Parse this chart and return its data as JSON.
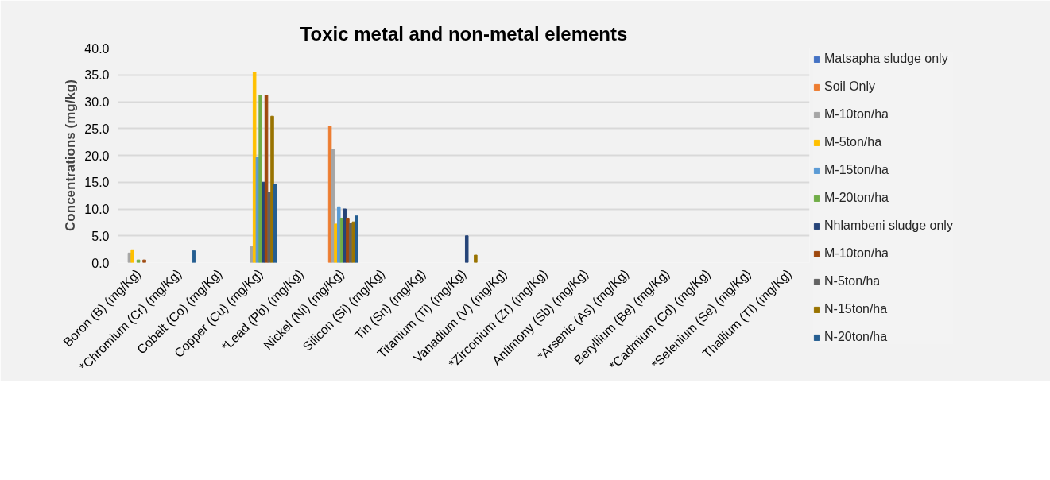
{
  "chart_data": {
    "type": "bar",
    "title": "Toxic metal and non-metal elements",
    "ylabel": "Concentrations (mg/kg)",
    "categories": [
      "Boron (B) (mg/Kg)",
      "*Chromium (Cr) (mg/Kg)",
      "Cobalt (Co) (mg/Kg)",
      "Copper (Cu) (mg/Kg)",
      "*Lead (Pb) (mg/Kg)",
      "Nickel (Ni) (mg/Kg)",
      "Silicon (Si) (mg/Kg)",
      "Tin (Sn) (mg/Kg)",
      "Titanium (Ti) (mg/Kg)",
      "Vanadium (V) (mg/Kg)",
      "*Zirconium (Zr) (mg/Kg)",
      "Antimony (Sb) (mg/Kg)",
      "*Arsenic (As) (mg/Kg)",
      "Beryllium (Be) (mg/Kg)",
      "*Cadmium (Cd) (mg/Kg)",
      "*Selenium (Se) (mg/Kg)",
      "Thallium (Tl) (mg/Kg)"
    ],
    "series": [
      {
        "name": "Matsapha sludge only",
        "color": "#4472c4",
        "values": [
          null,
          null,
          null,
          null,
          null,
          null,
          null,
          null,
          null,
          null,
          null,
          null,
          null,
          null,
          null,
          null,
          null
        ]
      },
      {
        "name": "Soil Only",
        "color": "#ed7d31",
        "values": [
          null,
          null,
          null,
          null,
          null,
          25.4,
          null,
          null,
          null,
          null,
          null,
          null,
          null,
          null,
          null,
          null,
          null
        ]
      },
      {
        "name": "M-10ton/ha",
        "color": "#a5a5a5",
        "values": [
          1.8,
          null,
          null,
          3.0,
          null,
          21.1,
          null,
          null,
          null,
          null,
          null,
          null,
          null,
          null,
          null,
          null,
          null
        ]
      },
      {
        "name": "M-5ton/ha",
        "color": "#ffc000",
        "values": [
          2.4,
          null,
          null,
          35.5,
          null,
          7.2,
          null,
          null,
          null,
          null,
          null,
          null,
          null,
          null,
          null,
          null,
          null
        ]
      },
      {
        "name": "M-15ton/ha",
        "color": "#5b9bd5",
        "values": [
          null,
          null,
          null,
          19.7,
          null,
          10.4,
          null,
          null,
          null,
          null,
          null,
          null,
          null,
          null,
          null,
          null,
          null
        ]
      },
      {
        "name": "M-20ton/ha",
        "color": "#70ad47",
        "values": [
          0.5,
          null,
          null,
          31.2,
          null,
          8.3,
          null,
          null,
          null,
          null,
          null,
          null,
          null,
          null,
          null,
          null,
          null
        ]
      },
      {
        "name": "Nhlambeni sludge only",
        "color": "#264478",
        "values": [
          null,
          null,
          null,
          15.0,
          null,
          10.0,
          null,
          null,
          5.0,
          null,
          null,
          null,
          null,
          null,
          null,
          null,
          null
        ]
      },
      {
        "name": "M-10ton/ha",
        "color": "#9e480e",
        "values": [
          0.5,
          null,
          null,
          31.2,
          null,
          8.3,
          null,
          null,
          null,
          null,
          null,
          null,
          null,
          null,
          null,
          null,
          null
        ]
      },
      {
        "name": "N-5ton/ha",
        "color": "#636363",
        "values": [
          null,
          null,
          null,
          13.1,
          null,
          7.4,
          null,
          null,
          null,
          null,
          null,
          null,
          null,
          null,
          null,
          null,
          null
        ]
      },
      {
        "name": "N-15ton/ha",
        "color": "#997300",
        "values": [
          null,
          null,
          null,
          27.3,
          null,
          7.6,
          null,
          null,
          1.4,
          null,
          null,
          null,
          null,
          null,
          null,
          null,
          null
        ]
      },
      {
        "name": "N-20ton/ha",
        "color": "#255e91",
        "values": [
          null,
          2.2,
          null,
          14.6,
          null,
          8.7,
          null,
          null,
          null,
          null,
          null,
          null,
          null,
          null,
          null,
          null,
          null
        ]
      }
    ],
    "ylim": [
      0,
      40
    ],
    "yticks": [
      {
        "value": 0,
        "label": "0.0"
      },
      {
        "value": 5,
        "label": "5.0"
      },
      {
        "value": 10,
        "label": "10.0"
      },
      {
        "value": 15,
        "label": "15.0"
      },
      {
        "value": 20,
        "label": "20.0"
      },
      {
        "value": 25,
        "label": "25.0"
      },
      {
        "value": 30,
        "label": "30.0"
      },
      {
        "value": 35,
        "label": "35.0"
      },
      {
        "value": 40,
        "label": "40.0"
      }
    ],
    "grid": "y",
    "legend": "right"
  }
}
